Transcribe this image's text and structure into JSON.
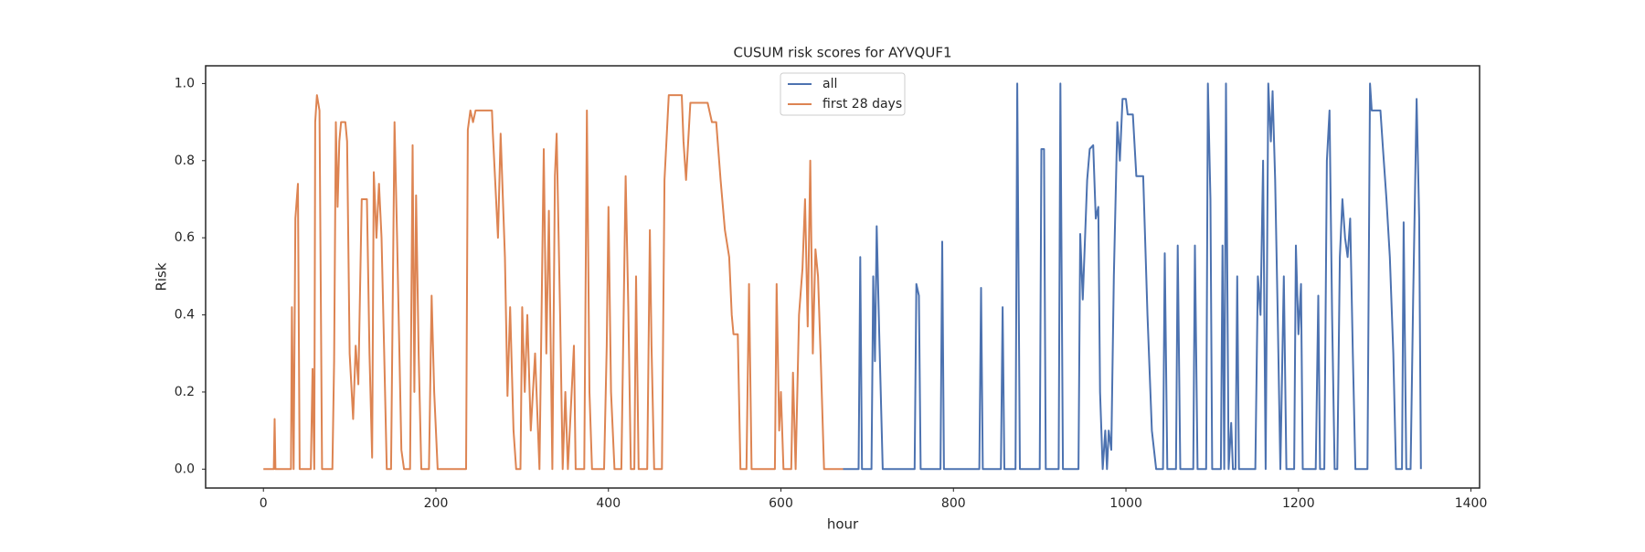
{
  "chart_data": {
    "type": "line",
    "title": "CUSUM risk scores for AYVQUF1",
    "xlabel": "hour",
    "ylabel": "Risk",
    "xlim": [
      -67,
      1410
    ],
    "xticks": [
      0,
      200,
      400,
      600,
      800,
      1000,
      1200,
      1400
    ],
    "ylim": [
      -0.049,
      1.046
    ],
    "yticks": [
      {
        "value": 0,
        "label": "0.0"
      },
      0.2,
      0.4,
      0.6,
      0.8,
      {
        "value": 1,
        "label": "1.0"
      }
    ],
    "legend": "upper center",
    "grid": false,
    "series": [
      {
        "name": "all",
        "color": "#4c72b0",
        "x": [
          672,
          690,
          692,
          694,
          705,
          707,
          709,
          711,
          714,
          718,
          755,
          757,
          760,
          762,
          785,
          787,
          789,
          830,
          832,
          834,
          855,
          857,
          859,
          872,
          874,
          877,
          900,
          902,
          905,
          907,
          922,
          924,
          927,
          945,
          947,
          950,
          955,
          958,
          962,
          965,
          968,
          970,
          973,
          976,
          978,
          980,
          983,
          986,
          990,
          993,
          996,
          1000,
          1002,
          1008,
          1012,
          1020,
          1025,
          1030,
          1035,
          1043,
          1045,
          1048,
          1058,
          1060,
          1063,
          1078,
          1080,
          1083,
          1093,
          1095,
          1098,
          1100,
          1110,
          1112,
          1114,
          1116,
          1119,
          1122,
          1124,
          1127,
          1129,
          1131,
          1150,
          1153,
          1156,
          1159,
          1162,
          1165,
          1168,
          1170,
          1173,
          1176,
          1179,
          1183,
          1186,
          1195,
          1197,
          1200,
          1203,
          1205,
          1220,
          1223,
          1225,
          1230,
          1233,
          1236,
          1239,
          1242,
          1245,
          1248,
          1251,
          1254,
          1257,
          1260,
          1263,
          1266,
          1280,
          1283,
          1285,
          1295,
          1298,
          1302,
          1306,
          1310,
          1313,
          1320,
          1322,
          1325,
          1330,
          1333,
          1337,
          1340,
          1342
        ],
        "values": [
          0,
          0,
          0.55,
          0,
          0,
          0.5,
          0.28,
          0.63,
          0.35,
          0,
          0,
          0.48,
          0.45,
          0,
          0,
          0.59,
          0,
          0,
          0.47,
          0,
          0,
          0.42,
          0,
          0,
          1.0,
          0,
          0,
          0.83,
          0.83,
          0,
          0,
          1.0,
          0,
          0,
          0.61,
          0.44,
          0.75,
          0.83,
          0.84,
          0.65,
          0.68,
          0.2,
          0,
          0.1,
          0,
          0.1,
          0.05,
          0.5,
          0.9,
          0.8,
          0.96,
          0.96,
          0.92,
          0.92,
          0.76,
          0.76,
          0.4,
          0.1,
          0,
          0,
          0.56,
          0,
          0,
          0.58,
          0,
          0,
          0.58,
          0,
          0,
          1.0,
          0.7,
          0,
          0,
          0.58,
          0,
          1.0,
          0,
          0.12,
          0,
          0,
          0.5,
          0,
          0,
          0.5,
          0.4,
          0.8,
          0,
          1.0,
          0.85,
          0.98,
          0.75,
          0.4,
          0,
          0.5,
          0,
          0,
          0.58,
          0.35,
          0.48,
          0,
          0,
          0.45,
          0,
          0,
          0.8,
          0.93,
          0.4,
          0,
          0,
          0.55,
          0.7,
          0.6,
          0.55,
          0.65,
          0.3,
          0,
          0,
          1.0,
          0.93,
          0.93,
          0.83,
          0.7,
          0.55,
          0.3,
          0,
          0,
          0.64,
          0,
          0,
          0.44,
          0.96,
          0.65,
          0
        ]
      },
      {
        "name": "first 28 days",
        "color": "#dd8452",
        "x": [
          0,
          12,
          13,
          14,
          32,
          33,
          35,
          37,
          40,
          42,
          55,
          57,
          59,
          60,
          62,
          65,
          68,
          80,
          82,
          84,
          86,
          88,
          90,
          95,
          97,
          100,
          104,
          107,
          110,
          114,
          120,
          123,
          126,
          128,
          131,
          134,
          137,
          140,
          143,
          148,
          152,
          155,
          160,
          163,
          170,
          173,
          175,
          177,
          180,
          183,
          192,
          195,
          198,
          202,
          235,
          237,
          240,
          243,
          246,
          265,
          266,
          272,
          275,
          280,
          283,
          286,
          290,
          293,
          298,
          300,
          303,
          306,
          310,
          315,
          320,
          325,
          328,
          331,
          335,
          338,
          340,
          344,
          347,
          350,
          353,
          360,
          362,
          372,
          375,
          378,
          381,
          395,
          398,
          400,
          403,
          407,
          415,
          420,
          423,
          426,
          430,
          432,
          435,
          445,
          448,
          450,
          453,
          462,
          465,
          470,
          485,
          487,
          490,
          495,
          515,
          520,
          525,
          530,
          535,
          540,
          543,
          545,
          550,
          553,
          560,
          563,
          566,
          593,
          595,
          598,
          600,
          603,
          612,
          614,
          617,
          621,
          625,
          628,
          631,
          634,
          637,
          640,
          643,
          646,
          650,
          672
        ],
        "values": [
          0,
          0,
          0.13,
          0,
          0,
          0.42,
          0,
          0.65,
          0.74,
          0,
          0,
          0.26,
          0,
          0.9,
          0.97,
          0.93,
          0,
          0,
          0.28,
          0.9,
          0.68,
          0.85,
          0.9,
          0.9,
          0.85,
          0.3,
          0.13,
          0.32,
          0.22,
          0.7,
          0.7,
          0.3,
          0.03,
          0.77,
          0.6,
          0.74,
          0.6,
          0.3,
          0,
          0,
          0.9,
          0.6,
          0.05,
          0,
          0,
          0.84,
          0.2,
          0.71,
          0.3,
          0,
          0,
          0.45,
          0.2,
          0,
          0,
          0.88,
          0.93,
          0.9,
          0.93,
          0.93,
          0.87,
          0.6,
          0.87,
          0.55,
          0.19,
          0.42,
          0.1,
          0,
          0,
          0.42,
          0.2,
          0.4,
          0.1,
          0.3,
          0,
          0.83,
          0.3,
          0.67,
          0,
          0.76,
          0.87,
          0.4,
          0,
          0.2,
          0,
          0.32,
          0,
          0,
          0.93,
          0.2,
          0,
          0,
          0.32,
          0.68,
          0.2,
          0,
          0,
          0.76,
          0.42,
          0,
          0,
          0.5,
          0,
          0,
          0.62,
          0.32,
          0,
          0,
          0.75,
          0.97,
          0.97,
          0.85,
          0.75,
          0.95,
          0.95,
          0.9,
          0.9,
          0.75,
          0.62,
          0.55,
          0.4,
          0.35,
          0.35,
          0,
          0,
          0.48,
          0,
          0,
          0.48,
          0.1,
          0.2,
          0,
          0,
          0.25,
          0,
          0.4,
          0.52,
          0.7,
          0.37,
          0.8,
          0.3,
          0.57,
          0.5,
          0.3,
          0,
          0
        ]
      }
    ]
  }
}
